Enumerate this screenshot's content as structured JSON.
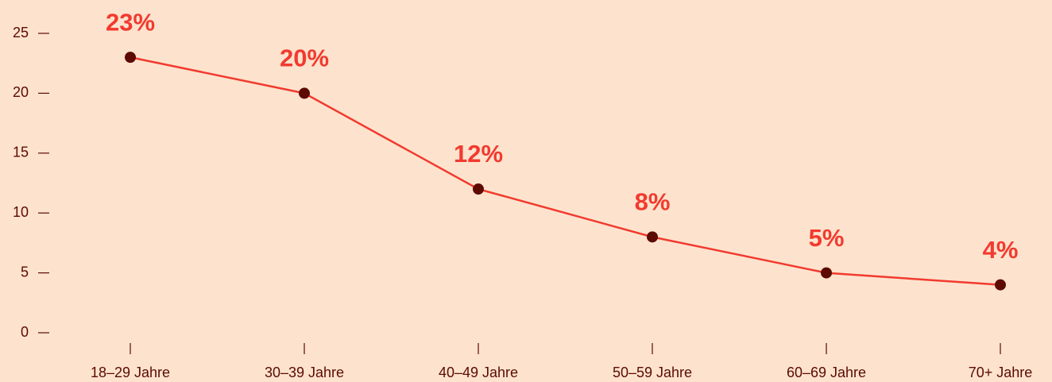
{
  "chart_data": {
    "type": "line",
    "categories": [
      "18–29 Jahre",
      "30–39 Jahre",
      "40–49 Jahre",
      "50–59 Jahre",
      "60–69 Jahre",
      "70+ Jahre"
    ],
    "values": [
      23,
      20,
      12,
      8,
      5,
      4
    ],
    "value_labels": [
      "23%",
      "20%",
      "12%",
      "8%",
      "5%",
      "4%"
    ],
    "color": "#f23a2f",
    "marker_color": "#5c0a02",
    "label_color": "#f23a2f",
    "ylim": [
      0,
      25
    ],
    "yticks": [
      0,
      5,
      10,
      15,
      20,
      25
    ],
    "grid": false
  }
}
